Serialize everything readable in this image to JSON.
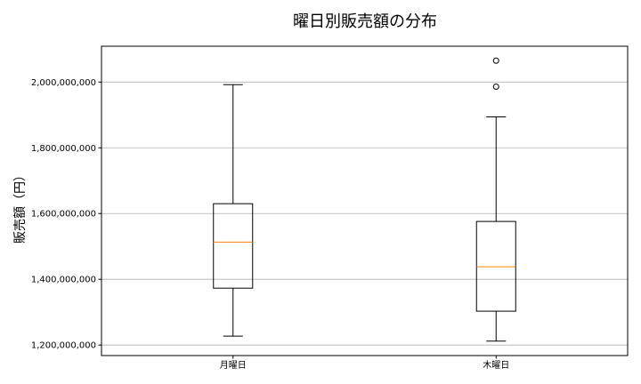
{
  "chart_data": {
    "type": "boxplot",
    "title": "曜日別販売額の分布",
    "xlabel": "",
    "ylabel": "販売額（円）",
    "ylim": [
      1168000000,
      2109000000
    ],
    "yticks": [
      1200000000,
      1400000000,
      1600000000,
      1800000000,
      2000000000
    ],
    "ytick_labels": [
      "1,200,000,000",
      "1,400,000,000",
      "1,600,000,000",
      "1,800,000,000",
      "2,000,000,000"
    ],
    "grid": "y",
    "categories": [
      "月曜日",
      "木曜日"
    ],
    "boxes": [
      {
        "label": "月曜日",
        "whisker_low": 1227000000,
        "q1": 1373000000,
        "median": 1513000000,
        "q3": 1630000000,
        "whisker_high": 1992000000,
        "outliers": []
      },
      {
        "label": "木曜日",
        "whisker_low": 1212000000,
        "q1": 1303000000,
        "median": 1438000000,
        "q3": 1576000000,
        "whisker_high": 1894000000,
        "outliers": [
          1986000000,
          2065000000
        ]
      }
    ],
    "colors": {
      "box": "#000000",
      "median": "#ff7f0e",
      "grid": "#b0b0b0"
    }
  }
}
